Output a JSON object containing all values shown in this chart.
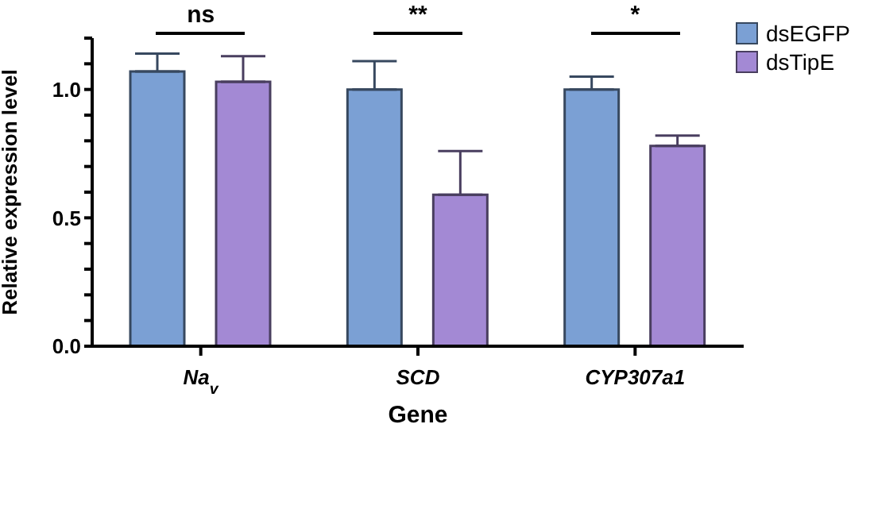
{
  "chart_data": {
    "type": "bar",
    "xlabel": "Gene",
    "ylabel": "Relative expression level",
    "categories": [
      "Na$_{v}$",
      "SCD",
      "CYP307a1"
    ],
    "series": [
      {
        "name": "dsEGFP",
        "color": "#7ba0d4",
        "values": [
          1.07,
          1.0,
          1.0
        ],
        "errors": [
          [
            1.07,
            1.14
          ],
          [
            1.0,
            1.11
          ],
          [
            1.0,
            1.05
          ]
        ]
      },
      {
        "name": "dsTipE",
        "color": "#a389d4",
        "values": [
          1.03,
          0.59,
          0.78
        ],
        "errors": [
          [
            1.03,
            1.13
          ],
          [
            0.59,
            0.76
          ],
          [
            0.78,
            0.82
          ]
        ]
      }
    ],
    "ylim": [
      0,
      1.2
    ],
    "yticks": [
      {
        "value": 0,
        "label": "0.0"
      },
      {
        "value": 0.1,
        "label": null
      },
      {
        "value": 0.2,
        "label": null
      },
      {
        "value": 0.3,
        "label": null
      },
      {
        "value": 0.4,
        "label": null
      },
      {
        "value": 0.5,
        "label": "0.5"
      },
      {
        "value": 0.6,
        "label": null
      },
      {
        "value": 0.7,
        "label": null
      },
      {
        "value": 0.8,
        "label": null
      },
      {
        "value": 0.9,
        "label": null
      },
      {
        "value": 1.0,
        "label": "1.0"
      },
      {
        "value": 1.1,
        "label": null
      },
      {
        "value": 1.2,
        "label": null
      }
    ],
    "annotations": [
      "ns",
      "**",
      "*"
    ],
    "legend": "top right"
  }
}
